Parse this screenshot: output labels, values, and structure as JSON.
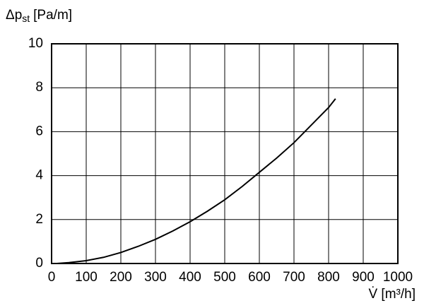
{
  "chart_data": {
    "type": "line",
    "y_label": [
      "Δp",
      "st",
      "[Pa/m]"
    ],
    "x_label": "V̇ [m³/h]",
    "x": [
      15,
      50,
      100,
      150,
      200,
      250,
      300,
      350,
      400,
      450,
      500,
      550,
      600,
      650,
      700,
      750,
      800,
      820
    ],
    "series": [
      {
        "color": "#000000",
        "values": [
          0,
          0.04,
          0.13,
          0.28,
          0.5,
          0.78,
          1.1,
          1.48,
          1.9,
          2.38,
          2.9,
          3.5,
          4.15,
          4.8,
          5.5,
          6.3,
          7.1,
          7.5
        ]
      }
    ],
    "xlim": [
      0,
      1000
    ],
    "ylim": [
      0,
      10
    ],
    "xticks": [
      0,
      100,
      200,
      300,
      400,
      500,
      600,
      700,
      800,
      900,
      1000
    ],
    "yticks": [
      0,
      2,
      4,
      6,
      8,
      10
    ],
    "grid": true
  }
}
